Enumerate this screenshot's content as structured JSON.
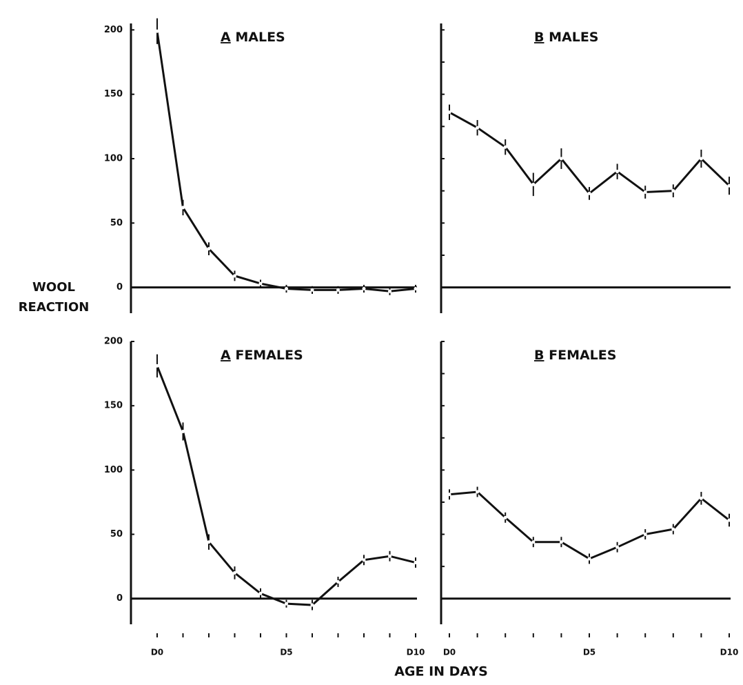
{
  "figure": {
    "ylabel": [
      "WOOL",
      "REACTION"
    ],
    "xlabel": "AGE IN DAYS"
  },
  "chart_data": [
    {
      "type": "line",
      "panel": "A",
      "title": "MALES",
      "color": "#111111",
      "values": [
        199,
        62,
        30,
        9,
        3,
        -1,
        -2,
        -2,
        -1,
        -3,
        -1
      ],
      "errors": [
        10,
        6,
        5,
        4,
        3,
        3,
        3,
        3,
        3,
        3,
        3
      ],
      "ylim": [
        -20,
        205
      ],
      "yticks": [
        0,
        50,
        100,
        150,
        200
      ],
      "show_ytick_labels": true
    },
    {
      "type": "line",
      "panel": "B",
      "title": "MALES",
      "color": "#111111",
      "values": [
        136,
        124,
        109,
        80,
        100,
        73,
        90,
        74,
        75,
        100,
        79
      ],
      "errors": [
        6,
        6,
        6,
        9,
        8,
        5,
        6,
        5,
        5,
        7,
        7
      ],
      "ylim": [
        -20,
        205
      ],
      "yticks": [
        0,
        25,
        50,
        75,
        100,
        125,
        150,
        175,
        200
      ],
      "show_ytick_labels": false
    },
    {
      "type": "line",
      "panel": "A",
      "title": "FEMALES",
      "color": "#111111",
      "categories": [
        "D0",
        null,
        null,
        null,
        null,
        "D5",
        null,
        null,
        null,
        null,
        "D10"
      ],
      "values": [
        181,
        130,
        44,
        20,
        4,
        -4,
        -5,
        13,
        30,
        33,
        28
      ],
      "errors": [
        9,
        7,
        6,
        5,
        4,
        3,
        4,
        4,
        4,
        4,
        4
      ],
      "ylim": [
        -20,
        200
      ],
      "yticks": [
        0,
        50,
        100,
        150,
        200
      ],
      "show_ytick_labels": true
    },
    {
      "type": "line",
      "panel": "B",
      "title": "FEMALES",
      "color": "#111111",
      "categories": [
        "D0",
        null,
        null,
        null,
        null,
        "D5",
        null,
        null,
        null,
        null,
        "D10"
      ],
      "values": [
        81,
        83,
        63,
        44,
        44,
        31,
        40,
        50,
        54,
        78,
        61
      ],
      "errors": [
        4,
        4,
        4,
        4,
        4,
        4,
        4,
        4,
        4,
        5,
        5
      ],
      "ylim": [
        -20,
        200
      ],
      "yticks": [
        0,
        25,
        50,
        75,
        100,
        125,
        150,
        175,
        200
      ],
      "show_ytick_labels": false
    }
  ]
}
